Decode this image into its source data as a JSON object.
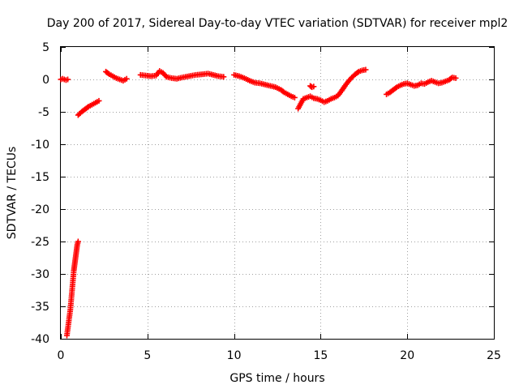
{
  "chart_data": {
    "type": "scatter",
    "title": "Day 200 of 2017, Sidereal Day-to-day VTEC variation (SDTVAR) for receiver mpl2",
    "xlabel": "GPS time / hours",
    "ylabel": "SDTVAR / TECUs",
    "xlim": [
      0,
      25
    ],
    "ylim": [
      -40,
      5
    ],
    "xticks": [
      0,
      5,
      10,
      15,
      20,
      25
    ],
    "yticks": [
      5,
      0,
      -5,
      -10,
      -15,
      -20,
      -25,
      -30,
      -35,
      -40
    ],
    "grid": true,
    "marker": "plus",
    "color": "#ff0000",
    "series": [
      {
        "name": "SDTVAR",
        "segments": [
          [
            [
              0.0,
              0.0
            ],
            [
              0.1,
              0.1
            ],
            [
              0.2,
              0.0
            ],
            [
              0.3,
              -0.1
            ],
            [
              0.4,
              0.0
            ]
          ],
          [
            [
              0.35,
              -39.5
            ],
            [
              0.45,
              -37.5
            ],
            [
              0.55,
              -35.5
            ],
            [
              0.6,
              -34.0
            ],
            [
              0.65,
              -32.5
            ],
            [
              0.7,
              -31.0
            ],
            [
              0.75,
              -29.5
            ],
            [
              0.8,
              -28.5
            ],
            [
              0.85,
              -27.5
            ],
            [
              0.9,
              -26.5
            ],
            [
              0.95,
              -25.5
            ],
            [
              1.0,
              -25.0
            ]
          ],
          [
            [
              1.0,
              -5.5
            ],
            [
              1.2,
              -5.0
            ],
            [
              1.4,
              -4.6
            ],
            [
              1.6,
              -4.2
            ],
            [
              1.8,
              -3.9
            ],
            [
              2.0,
              -3.6
            ],
            [
              2.2,
              -3.3
            ]
          ],
          [
            [
              2.6,
              1.2
            ],
            [
              2.8,
              0.8
            ],
            [
              3.0,
              0.5
            ],
            [
              3.2,
              0.2
            ],
            [
              3.4,
              0.0
            ],
            [
              3.6,
              -0.2
            ],
            [
              3.8,
              0.1
            ]
          ],
          [
            [
              4.6,
              0.7
            ],
            [
              4.9,
              0.6
            ],
            [
              5.2,
              0.5
            ],
            [
              5.5,
              0.6
            ],
            [
              5.7,
              1.3
            ],
            [
              5.9,
              1.0
            ],
            [
              6.1,
              0.4
            ],
            [
              6.4,
              0.2
            ],
            [
              6.7,
              0.1
            ],
            [
              7.0,
              0.3
            ],
            [
              7.4,
              0.5
            ],
            [
              7.8,
              0.7
            ],
            [
              8.2,
              0.8
            ],
            [
              8.5,
              0.9
            ],
            [
              8.8,
              0.7
            ],
            [
              9.1,
              0.5
            ],
            [
              9.4,
              0.4
            ]
          ],
          [
            [
              10.0,
              0.7
            ],
            [
              10.3,
              0.5
            ],
            [
              10.6,
              0.2
            ],
            [
              10.9,
              -0.2
            ],
            [
              11.2,
              -0.5
            ],
            [
              11.5,
              -0.6
            ],
            [
              11.8,
              -0.8
            ],
            [
              12.1,
              -1.0
            ],
            [
              12.4,
              -1.2
            ],
            [
              12.7,
              -1.6
            ],
            [
              12.9,
              -2.0
            ],
            [
              13.1,
              -2.3
            ],
            [
              13.3,
              -2.6
            ],
            [
              13.5,
              -2.8
            ]
          ],
          [
            [
              13.7,
              -4.5
            ],
            [
              13.8,
              -4.0
            ],
            [
              13.9,
              -3.5
            ],
            [
              14.0,
              -3.0
            ],
            [
              14.2,
              -2.8
            ],
            [
              14.4,
              -2.6
            ],
            [
              14.6,
              -2.9
            ],
            [
              14.8,
              -3.0
            ],
            [
              15.0,
              -3.2
            ],
            [
              15.2,
              -3.5
            ],
            [
              15.4,
              -3.3
            ],
            [
              15.6,
              -3.0
            ],
            [
              15.8,
              -2.8
            ],
            [
              16.0,
              -2.5
            ],
            [
              16.2,
              -1.8
            ],
            [
              16.4,
              -1.0
            ],
            [
              16.6,
              -0.3
            ],
            [
              16.8,
              0.3
            ],
            [
              17.0,
              0.8
            ],
            [
              17.2,
              1.2
            ],
            [
              17.4,
              1.4
            ],
            [
              17.6,
              1.5
            ]
          ],
          [
            [
              14.4,
              -1.0
            ],
            [
              14.5,
              -1.2
            ],
            [
              14.6,
              -1.1
            ]
          ],
          [
            [
              18.8,
              -2.3
            ],
            [
              19.0,
              -2.0
            ],
            [
              19.2,
              -1.6
            ],
            [
              19.4,
              -1.2
            ],
            [
              19.6,
              -0.9
            ],
            [
              19.8,
              -0.7
            ],
            [
              20.0,
              -0.6
            ],
            [
              20.2,
              -0.8
            ],
            [
              20.4,
              -1.0
            ],
            [
              20.6,
              -0.9
            ],
            [
              20.8,
              -0.6
            ],
            [
              21.0,
              -0.7
            ],
            [
              21.2,
              -0.4
            ],
            [
              21.4,
              -0.2
            ],
            [
              21.6,
              -0.4
            ],
            [
              21.8,
              -0.6
            ],
            [
              22.0,
              -0.5
            ],
            [
              22.2,
              -0.3
            ],
            [
              22.4,
              -0.1
            ],
            [
              22.6,
              0.3
            ],
            [
              22.8,
              0.2
            ]
          ]
        ]
      }
    ]
  }
}
